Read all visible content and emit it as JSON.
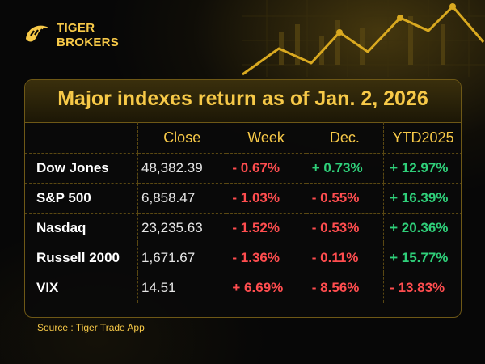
{
  "brand": {
    "line1": "TIGER",
    "line2": "BROKERS",
    "color": "#f7c948"
  },
  "title": "Major indexes return as of Jan. 2, 2026",
  "table": {
    "headers": [
      "",
      "Close",
      "Week",
      "Dec.",
      "YTD2025"
    ],
    "rows": [
      {
        "name": "Dow Jones",
        "close": "48,382.39",
        "week": "- 0.67%",
        "dec": "+ 0.73%",
        "ytd": "+ 12.97%"
      },
      {
        "name": "S&P 500",
        "close": "6,858.47",
        "week": "- 1.03%",
        "dec": "- 0.55%",
        "ytd": "+ 16.39%"
      },
      {
        "name": "Nasdaq",
        "close": "23,235.63",
        "week": "- 1.52%",
        "dec": "- 0.53%",
        "ytd": "+ 20.36%"
      },
      {
        "name": "Russell 2000",
        "close": "1,671.67",
        "week": "- 1.36%",
        "dec": "- 0.11%",
        "ytd": "+ 15.77%"
      },
      {
        "name": "VIX",
        "close": "14.51",
        "week": "+ 6.69%",
        "dec": "- 8.56%",
        "ytd": "- 13.83%"
      }
    ]
  },
  "source": "Source : Tiger Trade App",
  "colors": {
    "accent": "#f7c948",
    "negative": "#ff4d4f",
    "positive": "#2fd07a"
  }
}
